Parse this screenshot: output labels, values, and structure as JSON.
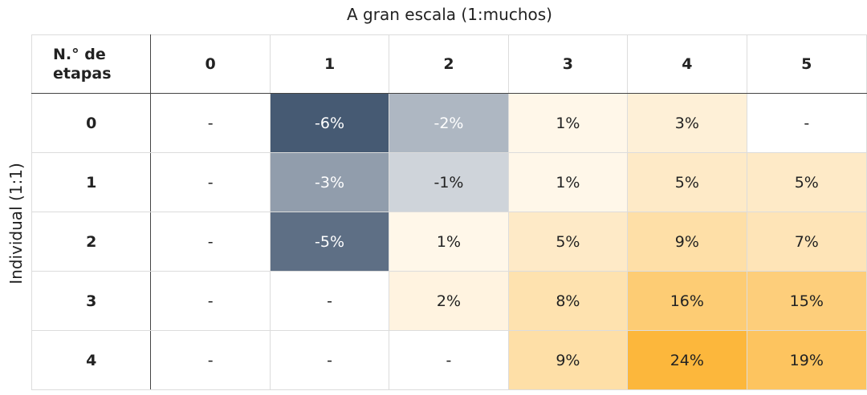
{
  "title": "A gran escala (1:muchos)",
  "ylabel": "Individual (1:1)",
  "corner_label": "N.° de etapas",
  "chart_data": {
    "type": "heatmap",
    "title": "A gran escala (1:muchos)",
    "xlabel": "A gran escala (1:muchos)",
    "ylabel": "Individual (1:1)",
    "x": [
      "0",
      "1",
      "2",
      "3",
      "4",
      "5"
    ],
    "y": [
      "0",
      "1",
      "2",
      "3",
      "4"
    ],
    "values": [
      [
        null,
        -6,
        -2,
        1,
        3,
        null
      ],
      [
        null,
        -3,
        -1,
        1,
        5,
        5
      ],
      [
        null,
        -5,
        1,
        5,
        9,
        7
      ],
      [
        null,
        null,
        2,
        8,
        16,
        15
      ],
      [
        null,
        null,
        null,
        9,
        24,
        19
      ]
    ],
    "labels": [
      [
        "-",
        "-6%",
        "-2%",
        "1%",
        "3%",
        "-"
      ],
      [
        "-",
        "-3%",
        "-1%",
        "1%",
        "5%",
        "5%"
      ],
      [
        "-",
        "-5%",
        "1%",
        "5%",
        "9%",
        "7%"
      ],
      [
        "-",
        "-",
        "2%",
        "8%",
        "16%",
        "15%"
      ],
      [
        "-",
        "-",
        "-",
        "9%",
        "24%",
        "19%"
      ]
    ],
    "colors": {
      "negative_max": "#465a73",
      "positive_max": "#fcb73c",
      "neutral": "#ffffff"
    }
  }
}
